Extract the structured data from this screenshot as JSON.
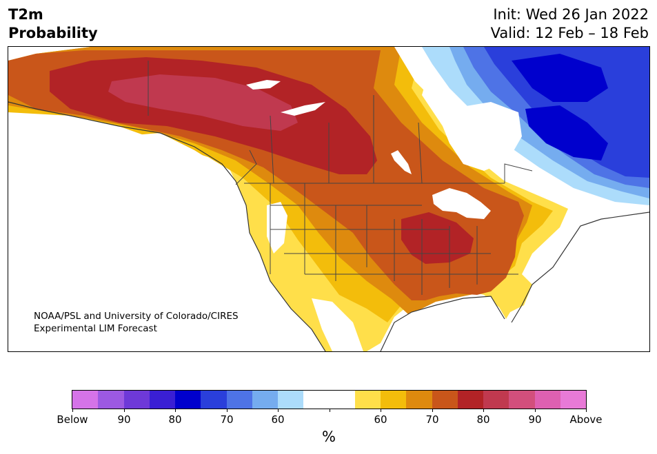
{
  "header": {
    "variable": "T2m",
    "metric": "Probability",
    "init": "Init: Wed 26 Jan 2022",
    "valid": "Valid: 12 Feb – 18 Feb"
  },
  "credit": {
    "line1": "NOAA/PSL and University of Colorado/CIRES",
    "line2": "Experimental LIM Forecast"
  },
  "colorbar": {
    "units": "%",
    "colors": [
      "#d573e8",
      "#9c59e2",
      "#6e39d8",
      "#3a1fd4",
      "#0000cd",
      "#2a3fdb",
      "#4e73e6",
      "#75acef",
      "#acdcfb",
      "#ffffff",
      "#ffffff",
      "#ffdf4a",
      "#f3bd0b",
      "#de8a0e",
      "#c9561a",
      "#b22326",
      "#c0394f",
      "#d24f7c",
      "#de60b1",
      "#e87ad7"
    ],
    "tick_labels": [
      "Below",
      "90",
      "80",
      "70",
      "60",
      "",
      "60",
      "70",
      "80",
      "90",
      "Above"
    ]
  },
  "map": {
    "region": "North America",
    "colors": {
      "ocean": "#ffffff",
      "land_neutral": "#ffffff",
      "below_60": "#acdcfb",
      "below_70": "#75acef",
      "below_80": "#4e73e6",
      "below_90": "#2a3fdb",
      "below_max": "#0000cd",
      "below_deep": "#3a1fd4",
      "above_60": "#ffdf4a",
      "above_70": "#f3bd0b",
      "above_75": "#de8a0e",
      "above_80": "#c9561a",
      "above_85": "#b22326",
      "above_90": "#c0394f",
      "border": "#444444"
    }
  }
}
